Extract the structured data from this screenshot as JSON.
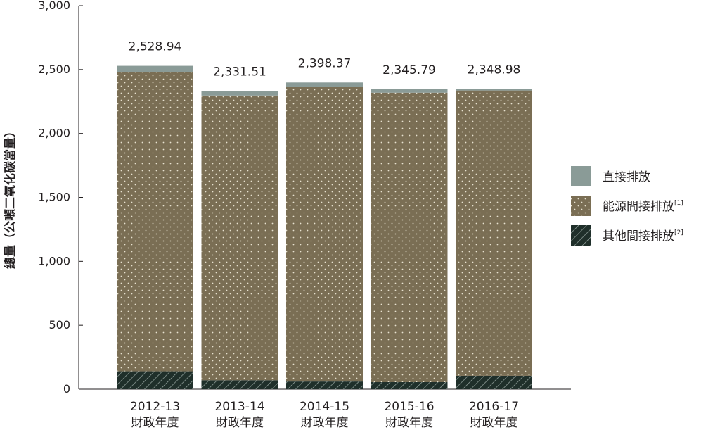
{
  "chart_data": {
    "type": "bar",
    "stacked": true,
    "categories": [
      "2012-13",
      "2013-14",
      "2014-15",
      "2015-16",
      "2016-17"
    ],
    "category_suffix": "財政年度",
    "series": [
      {
        "name": "其他間接排放",
        "note": "[2]",
        "values": [
          140,
          70,
          60,
          55,
          105
        ],
        "color": "#1f2f2a",
        "pattern": "hatch"
      },
      {
        "name": "能源間接排放",
        "note": "[1]",
        "values": [
          2338.94,
          2226.51,
          2303.37,
          2263.79,
          2230.98
        ],
        "color": "#7a6e54",
        "pattern": "dots"
      },
      {
        "name": "直接排放",
        "values": [
          50,
          35,
          35,
          27,
          13
        ],
        "color": "#8a9b97",
        "pattern": "solid"
      }
    ],
    "totals": [
      "2,528.94",
      "2,331.51",
      "2,398.37",
      "2,345.79",
      "2,348.98"
    ],
    "ylabel": "總量（公噸二氧化碳當量）",
    "ylim": [
      0,
      3000
    ],
    "yticks": [
      "0",
      "500",
      "1,000",
      "1,500",
      "2,000",
      "2,500",
      "3,000"
    ],
    "ytick_values": [
      0,
      500,
      1000,
      1500,
      2000,
      2500,
      3000
    ],
    "legend_order": [
      "直接排放",
      "能源間接排放",
      "其他間接排放"
    ],
    "legend_position": "right",
    "grid": false
  }
}
